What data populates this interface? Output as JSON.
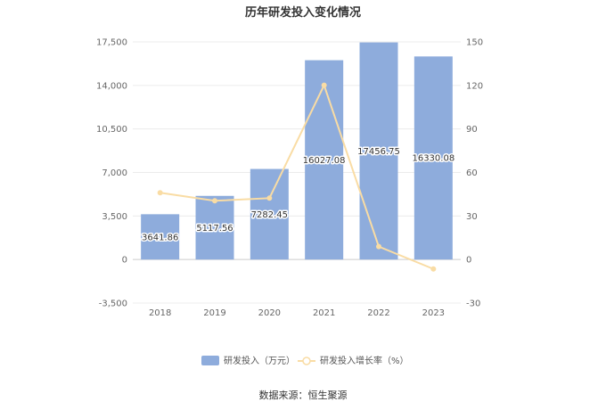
{
  "chart_data": {
    "type": "bar",
    "title": "历年研发投入变化情况",
    "categories": [
      "2018",
      "2019",
      "2020",
      "2021",
      "2022",
      "2023"
    ],
    "series": [
      {
        "name": "研发投入（万元）",
        "type": "bar",
        "axis": "left",
        "color": "#8eacdc",
        "values": [
          3641.86,
          5117.56,
          7282.45,
          16027.08,
          17456.75,
          16330.08
        ],
        "labels": [
          "3641.86",
          "5117.56",
          "7282.45",
          "16027.08",
          "17456.75",
          "16330.08"
        ]
      },
      {
        "name": "研发投入增长率（%）",
        "type": "line",
        "axis": "right",
        "color": "#f9dca4",
        "values": [
          46,
          40.5,
          42.3,
          120.1,
          8.9,
          -6.5
        ]
      }
    ],
    "y_left": {
      "ylim": [
        -3500,
        17500
      ],
      "ticks": [
        -3500,
        0,
        3500,
        7000,
        10500,
        14000,
        17500
      ],
      "tick_labels": [
        "-3,500",
        "0",
        "3,500",
        "7,000",
        "10,500",
        "14,000",
        "17,500"
      ]
    },
    "y_right": {
      "ylim": [
        -30,
        150
      ],
      "ticks": [
        -30,
        0,
        30,
        60,
        90,
        120,
        150
      ],
      "tick_labels": [
        "-30",
        "0",
        "30",
        "60",
        "90",
        "120",
        "150"
      ]
    },
    "grid": true,
    "legend_position": "bottom"
  },
  "source": "数据来源：恒生聚源"
}
